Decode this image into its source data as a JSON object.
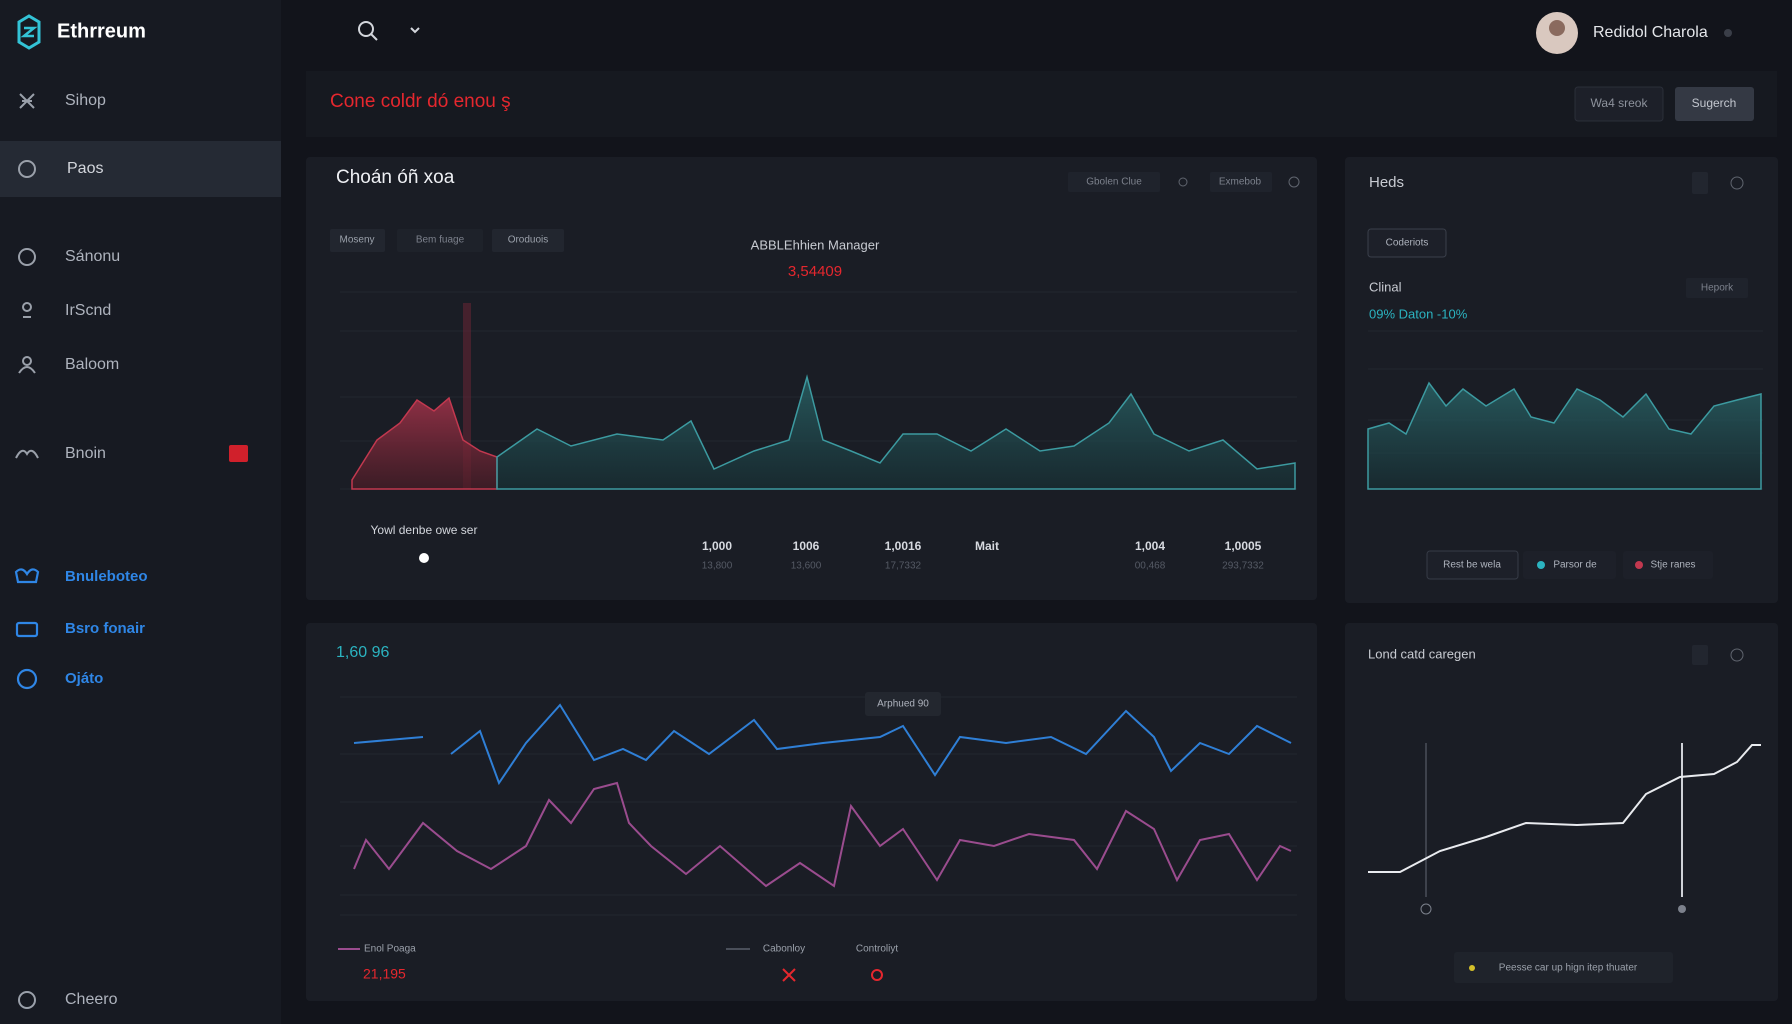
{
  "app": {
    "logo": "Ethrreum",
    "user": "Redidol Charola"
  },
  "sidebar": {
    "items": [
      "Sihop",
      "Paos",
      "Sánonu",
      "IrScnd",
      "Baloom",
      "Bnoin",
      "Bnuleboteo",
      "Bsro fonair",
      "Ojáto",
      "Cheero"
    ]
  },
  "banner": {
    "title": "Cone coldr dó enou ş",
    "buttons": [
      "Wa4 sreok",
      "Sugerch"
    ]
  },
  "main_panel": {
    "title": "Choán óñ xoa",
    "controls": [
      "Gbolen Clue",
      "Exmebob"
    ],
    "tabs": [
      "Moseny",
      "Bem fuage",
      "Oroduois"
    ],
    "chart_title": "ABBLEhhien Manager",
    "chart_value": "3,54409",
    "caption": "Yowl denbe owe ser",
    "stats": [
      {
        "value": "1,000",
        "sub": "13,800"
      },
      {
        "value": "1006",
        "sub": "13,600"
      },
      {
        "value": "1,0016",
        "sub": "17,7332"
      },
      {
        "value": "Mait",
        "sub": null
      },
      {
        "value": "1,004",
        "sub": "00,468"
      },
      {
        "value": "1,0005",
        "sub": "293,7332"
      }
    ]
  },
  "side_panel": {
    "title": "Heds",
    "button": "Coderiots",
    "label": "Clinal",
    "dropdown": "Hepork",
    "change": "09% Daton -10%",
    "actions": [
      "Rest be wela",
      "Parsor de",
      "Stje ranes"
    ]
  },
  "lower_panel": {
    "title": "1,60 96",
    "tooltip": "Arphued 90",
    "legend": [
      "Enol Poaga",
      "Cabonloy",
      "Controliyt"
    ],
    "value": "21,195"
  },
  "line_panel": {
    "title": "Lond catd caregen",
    "button": "Peesse car up hign itep thuater"
  }
}
